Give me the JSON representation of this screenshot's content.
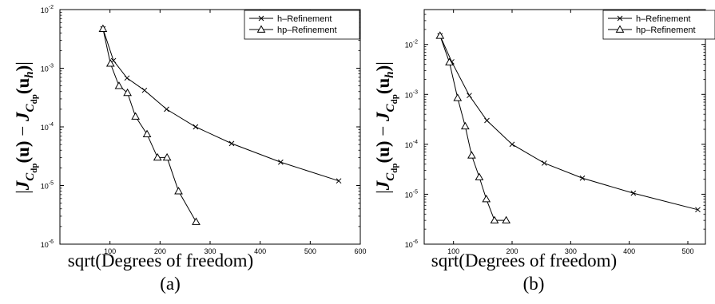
{
  "chart_data": [
    {
      "type": "line",
      "panel_label": "(a)",
      "title": "",
      "xlabel": "sqrt(Degrees of freedom)",
      "ylabel": "|J_{C_dp}(u) − J_{C_dp}(u_h)|",
      "yscale": "log",
      "xlim": [
        0,
        600
      ],
      "ylim": [
        1e-06,
        0.01
      ],
      "x_ticks": [
        100,
        200,
        300,
        400,
        500,
        600
      ],
      "x_tick_labels": [
        "100",
        "200",
        "300",
        "400",
        "500",
        "600"
      ],
      "y_ticks": [
        1e-06,
        1e-05,
        0.0001,
        0.001,
        0.01
      ],
      "y_tick_labels": [
        {
          "base": "10",
          "exp": "-6"
        },
        {
          "base": "10",
          "exp": "-5"
        },
        {
          "base": "10",
          "exp": "-4"
        },
        {
          "base": "10",
          "exp": "-3"
        },
        {
          "base": "10",
          "exp": "-2"
        }
      ],
      "legend_position": "top-right",
      "grid": false,
      "series": [
        {
          "name": "h–Refinement",
          "marker": "x",
          "x": [
            86,
            107,
            134,
            169,
            213,
            271,
            343,
            441,
            557
          ],
          "y": [
            0.0047,
            0.00135,
            0.00068,
            0.00042,
            0.0002,
            0.0001,
            5.2e-05,
            2.5e-05,
            1.2e-05
          ]
        },
        {
          "name": "hp–Refinement",
          "marker": "triangle",
          "x": [
            86,
            101,
            118,
            135,
            151,
            174,
            195,
            214,
            237,
            272
          ],
          "y": [
            0.0047,
            0.0012,
            0.0005,
            0.00038,
            0.00015,
            7.5e-05,
            3e-05,
            3e-05,
            8e-06,
            2.4e-06
          ]
        }
      ]
    },
    {
      "type": "line",
      "panel_label": "(b)",
      "title": "",
      "xlabel": "sqrt(Degrees of freedom)",
      "ylabel": "|J_{C_dp}(u) − J_{C_dp}(u_h)|",
      "yscale": "log",
      "xlim": [
        50,
        530
      ],
      "ylim": [
        1e-06,
        0.05
      ],
      "x_ticks": [
        100,
        200,
        300,
        400,
        500
      ],
      "x_tick_labels": [
        "100",
        "200",
        "300",
        "400",
        "500"
      ],
      "y_ticks": [
        1e-06,
        1e-05,
        0.0001,
        0.001,
        0.01
      ],
      "y_tick_labels": [
        {
          "base": "10",
          "exp": "-6"
        },
        {
          "base": "10",
          "exp": "-5"
        },
        {
          "base": "10",
          "exp": "-4"
        },
        {
          "base": "10",
          "exp": "-3"
        },
        {
          "base": "10",
          "exp": "-2"
        }
      ],
      "legend_position": "top-right",
      "grid": false,
      "series": [
        {
          "name": "h–Refinement",
          "marker": "x",
          "x": [
            77,
            97,
            127,
            157,
            200,
            255,
            320,
            407,
            517
          ],
          "y": [
            0.015,
            0.0045,
            0.00095,
            0.0003,
            0.0001,
            4.2e-05,
            2.1e-05,
            1.05e-05,
            4.9e-06
          ]
        },
        {
          "name": "hp–Refinement",
          "marker": "triangle",
          "x": [
            77,
            93,
            107,
            120,
            131,
            144,
            156,
            170,
            190
          ],
          "y": [
            0.015,
            0.0044,
            0.00085,
            0.00023,
            6e-05,
            2.2e-05,
            8e-06,
            3e-06,
            3e-06
          ]
        }
      ]
    }
  ]
}
